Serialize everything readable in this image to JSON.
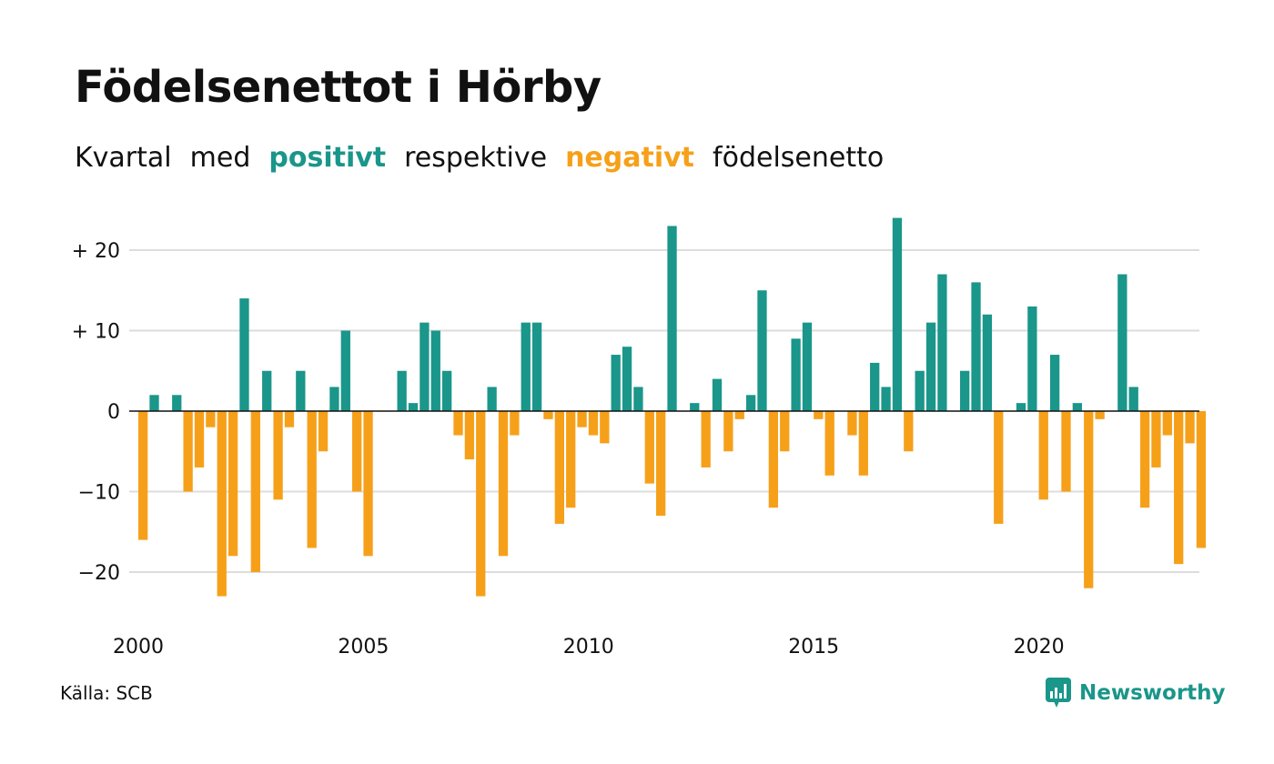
{
  "title": "Födelsenettot i Hörby",
  "subtitle": {
    "p1": "Kvartal",
    "p2": "med",
    "positive_word": "positivt",
    "p3": "respektive",
    "negative_word": "negativt",
    "p4": "födelsenetto"
  },
  "source": "Källa: SCB",
  "brand": "Newsworthy",
  "colors": {
    "positive": "#1a968a",
    "negative": "#f6a01a",
    "grid": "#dddddd",
    "text": "#111111"
  },
  "chart_data": {
    "type": "bar",
    "xlabel": "",
    "ylabel": "",
    "ylim": [
      -25,
      24
    ],
    "grid": true,
    "y_ticks": [
      {
        "value": 20,
        "label": "+ 20"
      },
      {
        "value": 10,
        "label": "+ 10"
      },
      {
        "value": 0,
        "label": "0"
      },
      {
        "value": -10,
        "label": "−10"
      },
      {
        "value": -20,
        "label": "−20"
      }
    ],
    "x_ticks": [
      {
        "value": 2000,
        "label": "2000"
      },
      {
        "value": 2005,
        "label": "2005"
      },
      {
        "value": 2010,
        "label": "2010"
      },
      {
        "value": 2015,
        "label": "2015"
      },
      {
        "value": 2020,
        "label": "2020"
      }
    ],
    "start_year": 2000,
    "values": [
      -16,
      2,
      0,
      2,
      -10,
      -7,
      -2,
      -23,
      -18,
      14,
      -20,
      5,
      -11,
      -2,
      5,
      -17,
      -5,
      3,
      10,
      -10,
      -18,
      0,
      0,
      5,
      1,
      11,
      10,
      5,
      -3,
      -6,
      -23,
      3,
      -18,
      -3,
      11,
      11,
      -1,
      -14,
      -12,
      -2,
      -3,
      -4,
      7,
      8,
      3,
      -9,
      -13,
      23,
      0,
      1,
      -7,
      4,
      -5,
      -1,
      2,
      15,
      -12,
      -5,
      9,
      11,
      -1,
      -8,
      0,
      -3,
      -8,
      6,
      3,
      24,
      -5,
      5,
      11,
      17,
      0,
      5,
      16,
      12,
      -14,
      0,
      1,
      13,
      -11,
      7,
      -10,
      1,
      -22,
      -1,
      0,
      17,
      3,
      -12,
      -7,
      -3,
      -19,
      -4,
      -17
    ]
  }
}
